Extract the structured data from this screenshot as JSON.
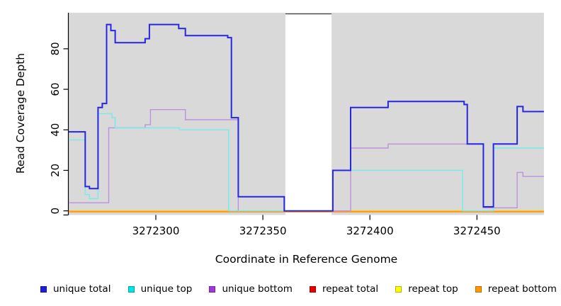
{
  "figure": {
    "background": "#ffffff",
    "panel_color": "#d9d9d9",
    "axis_color": "#000000",
    "gap_border_color": "#4a4a4a"
  },
  "x_axis": {
    "title": "Coordinate in Reference Genome",
    "tick_values": [
      3272300,
      3272350,
      3272400,
      3272450
    ],
    "tick_labels": [
      "3272300",
      "3272350",
      "3272400",
      "3272450"
    ]
  },
  "y_axis": {
    "title": "Read Coverage Depth",
    "tick_values": [
      0,
      20,
      40,
      60,
      80
    ],
    "tick_labels": [
      "0",
      "20",
      "40",
      "60",
      "80"
    ]
  },
  "legend": [
    {
      "label": "unique total",
      "color": "#1f1fd6"
    },
    {
      "label": "unique top",
      "color": "#00e5e5"
    },
    {
      "label": "unique bottom",
      "color": "#a435d6"
    },
    {
      "label": "repeat total",
      "color": "#e60000"
    },
    {
      "label": "repeat top",
      "color": "#ffff00"
    },
    {
      "label": "repeat bottom",
      "color": "#ff9900"
    }
  ],
  "chart_data": {
    "type": "line",
    "step": true,
    "title": "",
    "xlabel": "Coordinate in Reference Genome",
    "ylabel": "Read Coverage Depth",
    "xlim": [
      3272259.3,
      3272481.3
    ],
    "ylim": [
      0,
      98
    ],
    "grid": false,
    "legend_position": "bottom",
    "background_regions": [
      [
        3272259.3,
        3272360.5
      ],
      [
        3272382.1,
        3272481.3
      ]
    ],
    "series": [
      {
        "name": "repeat total",
        "color": "#dd0000",
        "width": 1.3,
        "points": [
          [
            3272259.3,
            0
          ]
        ]
      },
      {
        "name": "repeat top",
        "color": "#f0f000",
        "width": 1.3,
        "points": [
          [
            3272259.3,
            0
          ]
        ]
      },
      {
        "name": "repeat bottom",
        "color": "#ff9d1e",
        "width": 2.5,
        "points": [
          [
            3272259.3,
            0
          ]
        ]
      },
      {
        "name": "unique bottom",
        "color": "#bd92dd",
        "width": 1.4,
        "points": [
          [
            3272259.3,
            4
          ],
          [
            3272278,
            41
          ],
          [
            3272295,
            42.5
          ],
          [
            3272297.5,
            50
          ],
          [
            3272313.8,
            45
          ],
          [
            3272338.5,
            0
          ],
          [
            3272391,
            31
          ],
          [
            3272408.5,
            33
          ],
          [
            3272453,
            1.5
          ],
          [
            3272468.8,
            19
          ],
          [
            3272471.5,
            17
          ]
        ]
      },
      {
        "name": "unique top",
        "color": "#76ebeb",
        "width": 1.4,
        "points": [
          [
            3272259.3,
            35
          ],
          [
            3272267,
            8
          ],
          [
            3272269,
            6
          ],
          [
            3272273,
            48
          ],
          [
            3272279.5,
            46
          ],
          [
            3272281,
            41
          ],
          [
            3272311,
            40
          ],
          [
            3272334,
            0
          ],
          [
            3272382.7,
            20
          ],
          [
            3272443.3,
            0
          ],
          [
            3272457.7,
            31
          ]
        ]
      },
      {
        "name": "unique total",
        "color": "#2626e3",
        "width": 2,
        "points": [
          [
            3272259.3,
            39
          ],
          [
            3272267,
            12
          ],
          [
            3272269,
            11
          ],
          [
            3272273,
            51
          ],
          [
            3272275,
            53
          ],
          [
            3272277,
            92
          ],
          [
            3272279,
            89
          ],
          [
            3272281,
            83
          ],
          [
            3272295,
            85
          ],
          [
            3272297,
            92
          ],
          [
            3272310.7,
            90
          ],
          [
            3272313.8,
            86.5
          ],
          [
            3272333.6,
            85.5
          ],
          [
            3272335.3,
            46
          ],
          [
            3272338.5,
            7
          ],
          [
            3272360,
            0
          ],
          [
            3272382.7,
            20
          ],
          [
            3272391,
            51
          ],
          [
            3272408.5,
            54
          ],
          [
            3272444,
            52.5
          ],
          [
            3272445.5,
            33
          ],
          [
            3272453,
            2
          ],
          [
            3272457.7,
            33
          ],
          [
            3272468.8,
            51.5
          ],
          [
            3272471.5,
            49
          ]
        ]
      }
    ]
  }
}
